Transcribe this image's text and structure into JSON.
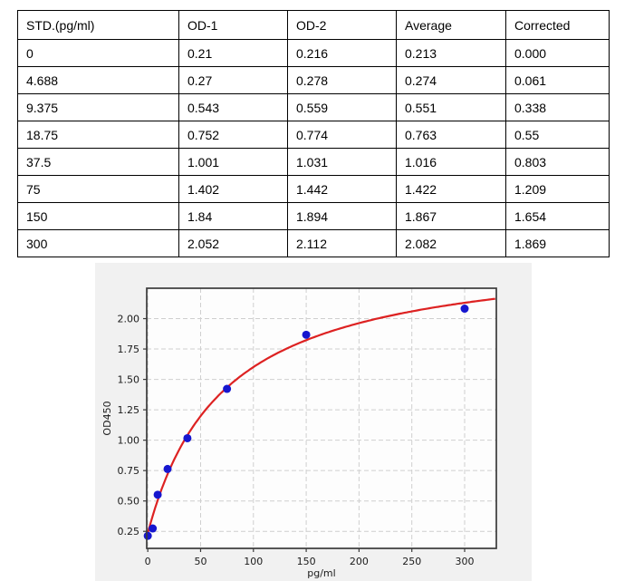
{
  "table": {
    "headers": [
      "STD.(pg/ml)",
      "OD-1",
      "OD-2",
      "Average",
      "Corrected"
    ],
    "rows": [
      [
        "0",
        "0.21",
        "0.216",
        "0.213",
        "0.000"
      ],
      [
        "4.688",
        "0.27",
        "0.278",
        "0.274",
        "0.061"
      ],
      [
        "9.375",
        "0.543",
        "0.559",
        "0.551",
        "0.338"
      ],
      [
        "18.75",
        "0.752",
        "0.774",
        "0.763",
        "0.55"
      ],
      [
        "37.5",
        "1.001",
        "1.031",
        "1.016",
        "0.803"
      ],
      [
        "75",
        "1.402",
        "1.442",
        "1.422",
        "1.209"
      ],
      [
        "150",
        "1.84",
        "1.894",
        "1.867",
        "1.654"
      ],
      [
        "300",
        "2.052",
        "2.112",
        "2.082",
        "1.869"
      ]
    ]
  },
  "chart_data": {
    "type": "scatter",
    "title": "",
    "xlabel": "pg/ml",
    "ylabel": "OD450",
    "x": [
      0,
      4.688,
      9.375,
      18.75,
      37.5,
      75,
      150,
      300
    ],
    "y": [
      0.213,
      0.274,
      0.551,
      0.763,
      1.016,
      1.422,
      1.867,
      2.082
    ],
    "xlim": [
      -1,
      330
    ],
    "ylim": [
      0.11,
      2.25
    ],
    "xticks": [
      0,
      50,
      100,
      150,
      200,
      250,
      300
    ],
    "yticks": [
      0.25,
      0.5,
      0.75,
      1.0,
      1.25,
      1.5,
      1.75,
      2.0
    ],
    "grid": true,
    "grid_style": "dashed",
    "legend_position": "none",
    "marker_color": "#1616cf",
    "curve_color": "#dd2222",
    "figure_bg": "#f1f1f1",
    "plot_bg": "#fdfdfd",
    "grid_color": "#cfcfcf",
    "spine_color": "#3a3a3a",
    "text_color": "#1a1a1a",
    "fit_curve": {
      "model": "y = a + b*x/(c+x)",
      "a": 0.235,
      "b": 2.35,
      "c": 72
    }
  }
}
